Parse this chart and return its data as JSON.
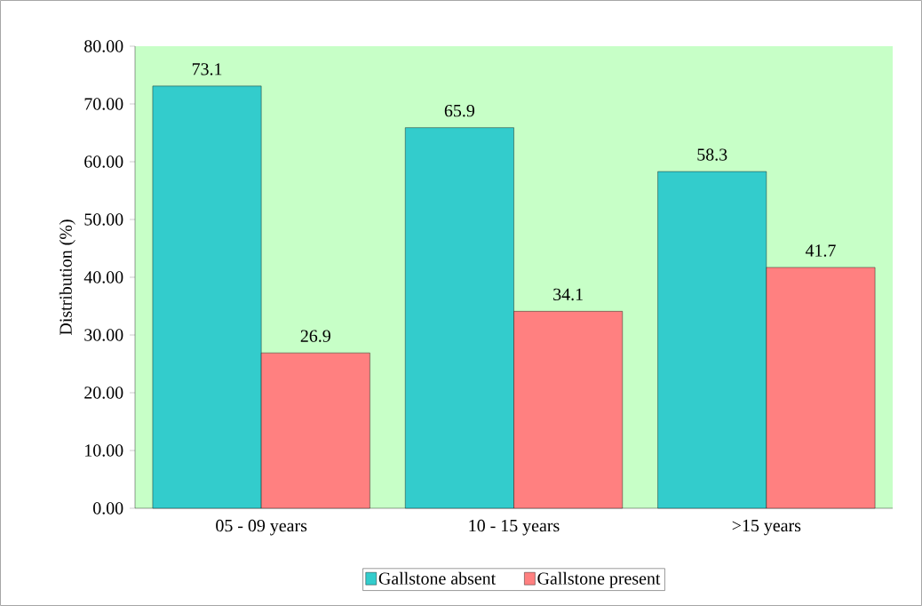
{
  "chart_data": {
    "type": "bar",
    "ylabel": "Distribution (%)",
    "categories": [
      "05 - 09 years",
      "10 - 15 years",
      ">15  years"
    ],
    "series": [
      {
        "name": "Gallstone absent",
        "color": "#33cccc",
        "values": [
          73.1,
          65.9,
          58.3
        ]
      },
      {
        "name": "Gallstone present",
        "color": "#ff8080",
        "values": [
          26.9,
          34.1,
          41.7
        ]
      }
    ],
    "ylim": [
      0,
      80
    ],
    "yticks": [
      {
        "value": 0,
        "label": "0.00"
      },
      {
        "value": 10,
        "label": "10.00"
      },
      {
        "value": 20,
        "label": "20.00"
      },
      {
        "value": 30,
        "label": "30.00"
      },
      {
        "value": 40,
        "label": "40.00"
      },
      {
        "value": 50,
        "label": "50.00"
      },
      {
        "value": 60,
        "label": "60.00"
      },
      {
        "value": 70,
        "label": "70.00"
      },
      {
        "value": 80,
        "label": "80.00"
      }
    ],
    "data_labels": true,
    "legend": "bottom",
    "grid": false
  }
}
